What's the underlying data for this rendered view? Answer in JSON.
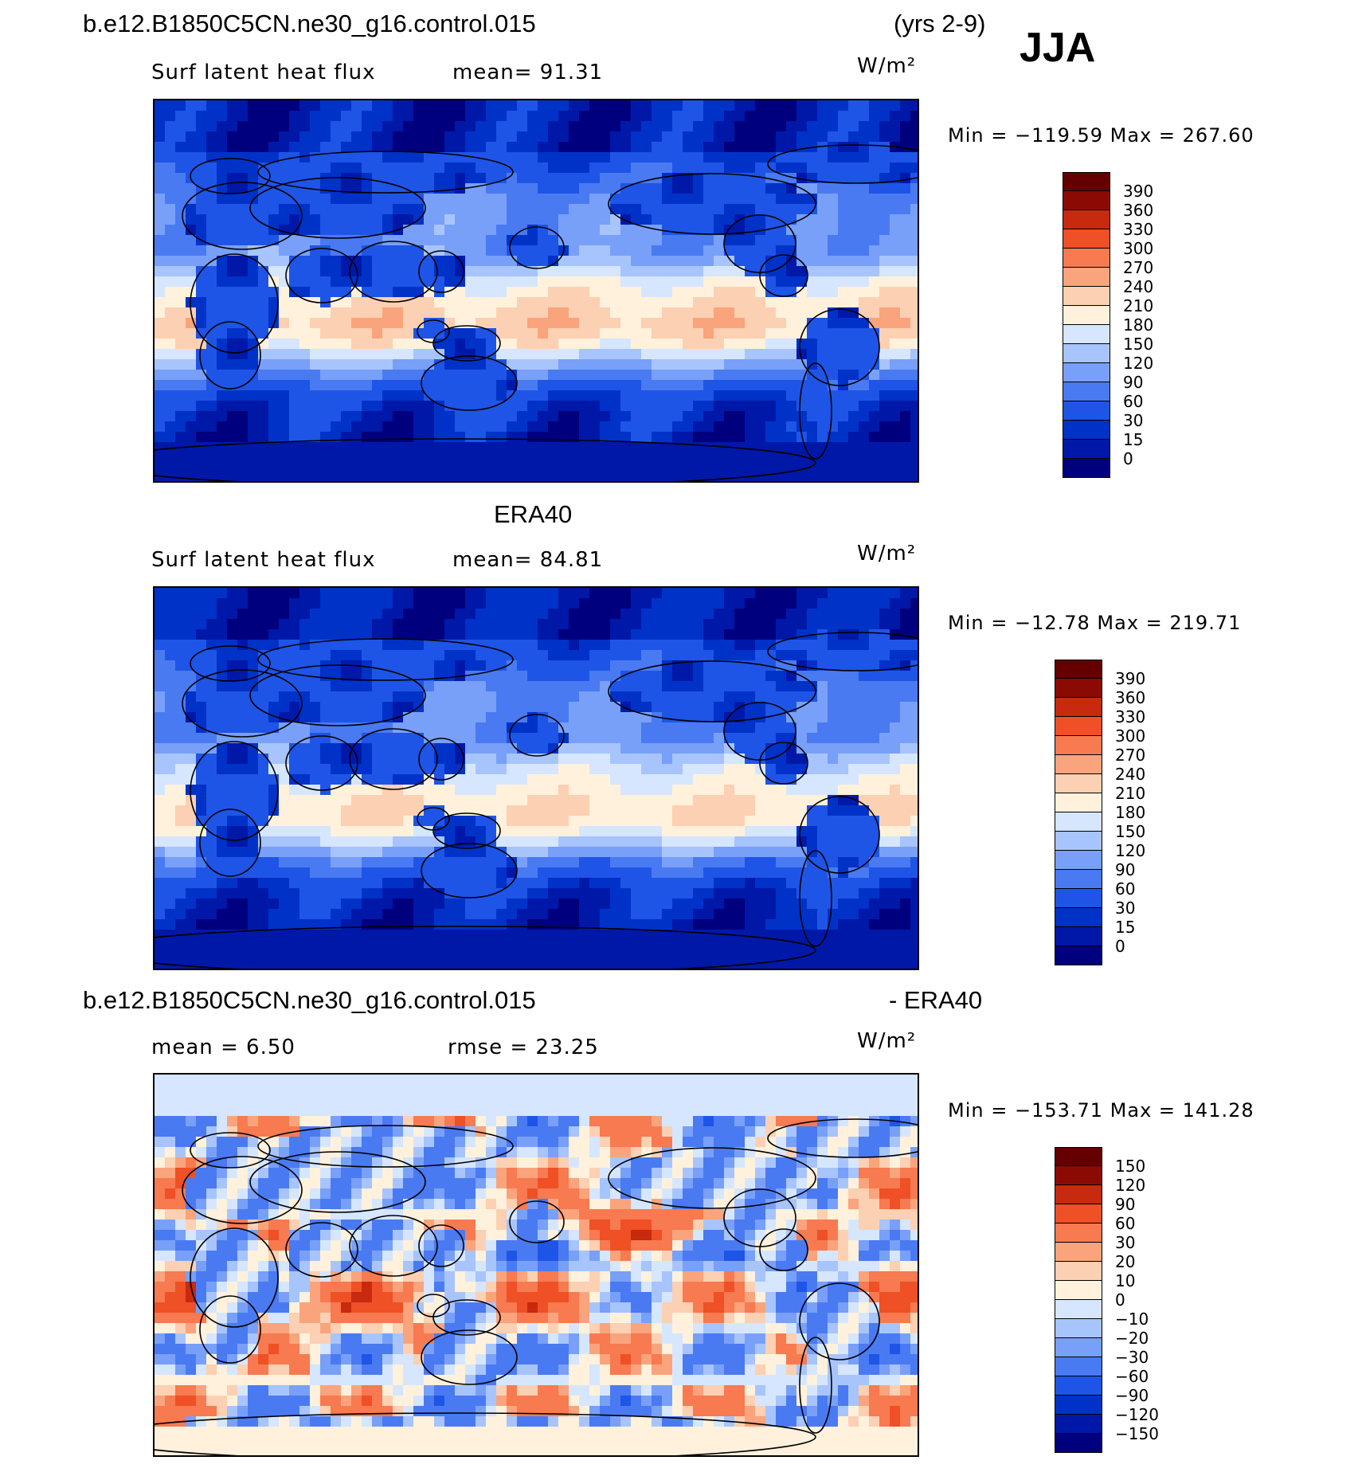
{
  "header": {
    "case_title": "b.e12.B1850C5CN.ne30_g16.control.015",
    "years": "(yrs 2-9)",
    "season": "JJA"
  },
  "panels": [
    {
      "id": "model",
      "subtitle_left": "Surf latent heat flux",
      "subtitle_mean": "mean=   91.31",
      "units": "W/m²",
      "minmax": "Min = −119.59 Max = 267.60",
      "colorbar_levels": [
        "390",
        "360",
        "330",
        "300",
        "270",
        "240",
        "210",
        "180",
        "150",
        "120",
        "90",
        "60",
        "30",
        "15",
        "0"
      ]
    },
    {
      "id": "obs",
      "title": "ERA40",
      "subtitle_left": "Surf latent heat flux",
      "subtitle_mean": "mean=   84.81",
      "units": "W/m²",
      "minmax": "Min = −12.78 Max = 219.71",
      "colorbar_levels": [
        "390",
        "360",
        "330",
        "300",
        "270",
        "240",
        "210",
        "180",
        "150",
        "120",
        "90",
        "60",
        "30",
        "15",
        "0"
      ]
    },
    {
      "id": "diff",
      "title_left": "b.e12.B1850C5CN.ne30_g16.control.015",
      "title_right": "- ERA40",
      "subtitle_mean": "mean =    6.50",
      "subtitle_rmse": "rmse =   23.25",
      "units": "W/m²",
      "minmax": "Min = −153.71 Max = 141.28",
      "colorbar_levels": [
        "150",
        "120",
        "90",
        "60",
        "30",
        "20",
        "10",
        "0",
        "−10",
        "−20",
        "−30",
        "−60",
        "−90",
        "−120",
        "−150"
      ]
    }
  ],
  "colors": {
    "abs_scale": [
      "#00007f",
      "#0018a8",
      "#0032c8",
      "#1e55e6",
      "#4a7af2",
      "#78a0f8",
      "#a8c4fc",
      "#d6e6fe",
      "#fff1dc",
      "#fcd0b2",
      "#f9a47c",
      "#f77a50",
      "#ef5026",
      "#c72a0e",
      "#8c0a04",
      "#640000"
    ],
    "diff_scale": [
      "#00007f",
      "#0018a8",
      "#0032c8",
      "#1e55e6",
      "#4a7af2",
      "#78a0f8",
      "#a8c4fc",
      "#d6e6fe",
      "#fff1dc",
      "#fcd0b2",
      "#f9a47c",
      "#f77a50",
      "#ef5026",
      "#c72a0e",
      "#8c0a04",
      "#640000"
    ]
  },
  "chart_data": [
    {
      "type": "heatmap",
      "title": "b.e12.B1850C5CN.ne30_g16.control.015",
      "variable": "Surf latent heat flux",
      "season": "JJA",
      "units": "W/m²",
      "mean": 91.31,
      "min": -119.59,
      "max": 267.6,
      "levels": [
        0,
        15,
        30,
        60,
        90,
        120,
        150,
        180,
        210,
        240,
        270,
        300,
        330,
        360,
        390
      ]
    },
    {
      "type": "heatmap",
      "title": "ERA40",
      "variable": "Surf latent heat flux",
      "season": "JJA",
      "units": "W/m²",
      "mean": 84.81,
      "min": -12.78,
      "max": 219.71,
      "levels": [
        0,
        15,
        30,
        60,
        90,
        120,
        150,
        180,
        210,
        240,
        270,
        300,
        330,
        360,
        390
      ]
    },
    {
      "type": "heatmap",
      "title": "b.e12.B1850C5CN.ne30_g16.control.015 - ERA40",
      "season": "JJA",
      "units": "W/m²",
      "mean": 6.5,
      "rmse": 23.25,
      "min": -153.71,
      "max": 141.28,
      "levels": [
        -150,
        -120,
        -90,
        -60,
        -30,
        -20,
        -10,
        0,
        10,
        20,
        30,
        60,
        90,
        120,
        150
      ]
    }
  ]
}
